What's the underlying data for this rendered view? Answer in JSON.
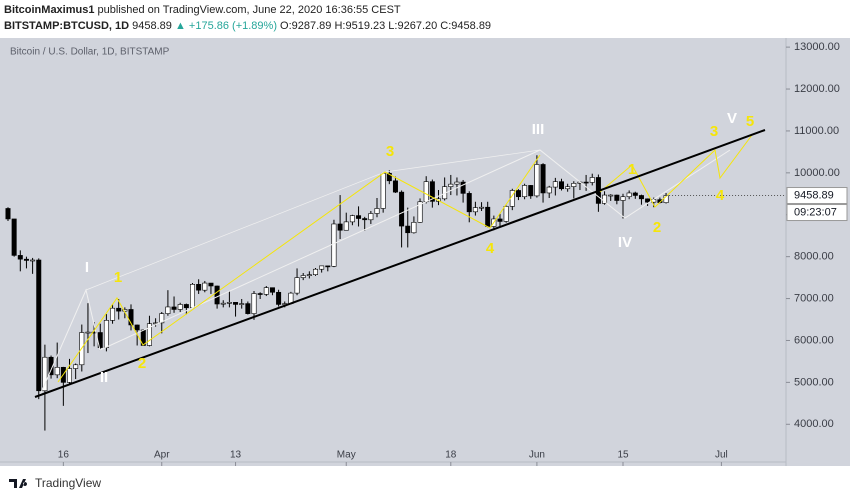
{
  "header": {
    "author": "BitcoinMaximus1",
    "published": "published on TradingView.com, June 22, 2020 16:36:55 CEST",
    "symbol": "BITSTAMP:BTCUSD, 1D",
    "price": "9458.89",
    "change": "▲ +175.86 (+1.89%)",
    "ohlc": "O:9287.89 H:9519.23 L:9267.20 C:9458.89",
    "brand": "TradingView"
  },
  "chart_data": {
    "type": "candlestick",
    "title": "Bitcoin / U.S. Dollar, 1D, BITSTAMP",
    "up_color": "#ffffff",
    "down_color": "#000000",
    "wick_color": "#000000",
    "grid": false,
    "ylim": [
      3100,
      13170
    ],
    "yticks": [
      {
        "value": 4000,
        "label": "4000.00"
      },
      {
        "value": 5000,
        "label": "5000.00"
      },
      {
        "value": 6000,
        "label": "6000.00"
      },
      {
        "value": 7000,
        "label": "7000.00"
      },
      {
        "value": 8000,
        "label": "8000.00"
      },
      {
        "value": 9000,
        "label": "9000.00"
      },
      {
        "value": 10000,
        "label": "10000.00"
      },
      {
        "value": 11000,
        "label": "11000.00"
      },
      {
        "value": 12000,
        "label": "12000.00"
      },
      {
        "value": 13000,
        "label": "13000.00"
      }
    ],
    "last_price": {
      "value": 9458.89,
      "label": "9458.89"
    },
    "countdown": "09:23:07",
    "categories": [
      null,
      null,
      null,
      null,
      null,
      null,
      null,
      null,
      null,
      "16",
      null,
      null,
      null,
      null,
      null,
      null,
      null,
      null,
      null,
      null,
      null,
      null,
      null,
      null,
      null,
      "Apr",
      null,
      null,
      null,
      null,
      null,
      null,
      null,
      null,
      null,
      null,
      null,
      "13",
      null,
      null,
      null,
      null,
      null,
      null,
      null,
      null,
      null,
      null,
      null,
      null,
      null,
      null,
      null,
      null,
      null,
      "May",
      null,
      null,
      null,
      null,
      null,
      null,
      null,
      null,
      null,
      null,
      null,
      null,
      null,
      null,
      null,
      null,
      "18",
      null,
      null,
      null,
      null,
      null,
      null,
      null,
      null,
      null,
      null,
      null,
      null,
      null,
      "Jun",
      null,
      null,
      null,
      null,
      null,
      null,
      null,
      null,
      null,
      null,
      null,
      null,
      null,
      "15",
      null,
      null,
      null,
      null,
      null,
      null,
      null,
      null,
      null,
      null,
      null,
      null,
      null,
      null,
      null,
      "Jul",
      null,
      null,
      null,
      null,
      null,
      null,
      null,
      null,
      null,
      null
    ],
    "ohlc": [
      [
        9150,
        9180,
        8850,
        8900
      ],
      [
        8900,
        8900,
        8000,
        8030
      ],
      [
        8030,
        8150,
        7650,
        7940
      ],
      [
        7940,
        8000,
        7720,
        7910
      ],
      [
        7910,
        7970,
        7590,
        7920
      ],
      [
        7920,
        7960,
        4600,
        4800
      ],
      [
        4800,
        5900,
        3850,
        5600
      ],
      [
        5600,
        5640,
        5090,
        5180
      ],
      [
        5180,
        5950,
        5100,
        5360
      ],
      [
        5360,
        5370,
        4440,
        5000
      ],
      [
        5000,
        5560,
        4970,
        5330
      ],
      [
        5330,
        5450,
        5080,
        5420
      ],
      [
        5420,
        6380,
        5260,
        6190
      ],
      [
        6190,
        6890,
        5700,
        6200
      ],
      [
        6200,
        6440,
        5860,
        6190
      ],
      [
        6190,
        6400,
        5770,
        5830
      ],
      [
        5830,
        6630,
        5740,
        6480
      ],
      [
        6480,
        6860,
        6400,
        6770
      ],
      [
        6770,
        6990,
        6500,
        6700
      ],
      [
        6700,
        6790,
        6530,
        6740
      ],
      [
        6740,
        6860,
        6240,
        6370
      ],
      [
        6370,
        6380,
        5880,
        6250
      ],
      [
        6250,
        6270,
        5880,
        5880
      ],
      [
        5880,
        6590,
        5860,
        6400
      ],
      [
        6400,
        6530,
        6330,
        6420
      ],
      [
        6420,
        6680,
        6170,
        6640
      ],
      [
        6640,
        7200,
        6590,
        6800
      ],
      [
        6800,
        7050,
        6660,
        6740
      ],
      [
        6740,
        6900,
        6680,
        6860
      ],
      [
        6860,
        6880,
        6620,
        6780
      ],
      [
        6780,
        7370,
        6780,
        7340
      ],
      [
        7340,
        7460,
        7110,
        7200
      ],
      [
        7200,
        7420,
        7150,
        7370
      ],
      [
        7370,
        7370,
        7110,
        7300
      ],
      [
        7300,
        7310,
        6760,
        6870
      ],
      [
        6870,
        6960,
        6790,
        6890
      ],
      [
        6890,
        7170,
        6790,
        6910
      ],
      [
        6910,
        6910,
        6570,
        6860
      ],
      [
        6860,
        6990,
        6760,
        6880
      ],
      [
        6880,
        6930,
        6620,
        6640
      ],
      [
        6640,
        7180,
        6490,
        7120
      ],
      [
        7120,
        7150,
        6990,
        7100
      ],
      [
        7100,
        7300,
        7060,
        7260
      ],
      [
        7260,
        7260,
        7080,
        7150
      ],
      [
        7150,
        7210,
        6810,
        6860
      ],
      [
        6860,
        6930,
        6790,
        6880
      ],
      [
        6880,
        7160,
        6860,
        7130
      ],
      [
        7130,
        7720,
        7080,
        7500
      ],
      [
        7500,
        7610,
        7440,
        7550
      ],
      [
        7550,
        7650,
        7480,
        7570
      ],
      [
        7570,
        7730,
        7540,
        7700
      ],
      [
        7700,
        7780,
        7620,
        7780
      ],
      [
        7780,
        7780,
        7650,
        7770
      ],
      [
        7770,
        8880,
        7750,
        8780
      ],
      [
        8780,
        9470,
        8420,
        8630
      ],
      [
        8630,
        9050,
        8630,
        8830
      ],
      [
        8830,
        9000,
        8750,
        8980
      ],
      [
        8980,
        9200,
        8720,
        8910
      ],
      [
        8910,
        8950,
        8620,
        8880
      ],
      [
        8880,
        9090,
        8780,
        9030
      ],
      [
        9030,
        9400,
        8940,
        9150
      ],
      [
        9150,
        9990,
        9050,
        9990
      ],
      [
        9990,
        10060,
        9730,
        9810
      ],
      [
        9810,
        9910,
        9520,
        9540
      ],
      [
        9540,
        9580,
        8220,
        8730
      ],
      [
        8730,
        9170,
        8220,
        8570
      ],
      [
        8570,
        8960,
        8550,
        8820
      ],
      [
        8820,
        9390,
        8810,
        9310
      ],
      [
        9310,
        9920,
        9270,
        9790
      ],
      [
        9790,
        9840,
        9170,
        9320
      ],
      [
        9320,
        9590,
        9230,
        9380
      ],
      [
        9380,
        9890,
        9340,
        9670
      ],
      [
        9670,
        9950,
        9470,
        9730
      ],
      [
        9730,
        9890,
        9460,
        9780
      ],
      [
        9780,
        9830,
        9290,
        9510
      ],
      [
        9510,
        9560,
        8820,
        9070
      ],
      [
        9070,
        9310,
        8980,
        9170
      ],
      [
        9170,
        9300,
        9090,
        9180
      ],
      [
        9180,
        9310,
        8700,
        8720
      ],
      [
        8720,
        8980,
        8630,
        8900
      ],
      [
        8900,
        9020,
        8700,
        8840
      ],
      [
        8840,
        9220,
        8810,
        9200
      ],
      [
        9200,
        9620,
        9110,
        9580
      ],
      [
        9580,
        9610,
        9350,
        9430
      ],
      [
        9430,
        9740,
        9370,
        9700
      ],
      [
        9700,
        9710,
        9380,
        9450
      ],
      [
        9450,
        10420,
        9410,
        10200
      ],
      [
        10200,
        10230,
        9290,
        9520
      ],
      [
        9520,
        9690,
        9400,
        9660
      ],
      [
        9660,
        9880,
        9460,
        9790
      ],
      [
        9790,
        9860,
        9580,
        9620
      ],
      [
        9620,
        9740,
        9550,
        9670
      ],
      [
        9670,
        9800,
        9390,
        9750
      ],
      [
        9750,
        9800,
        9590,
        9780
      ],
      [
        9780,
        9950,
        9570,
        9770
      ],
      [
        9770,
        9980,
        9700,
        9890
      ],
      [
        9890,
        9960,
        9070,
        9270
      ],
      [
        9270,
        9560,
        9240,
        9470
      ],
      [
        9470,
        9490,
        9330,
        9470
      ],
      [
        9470,
        9480,
        9250,
        9340
      ],
      [
        9340,
        9500,
        8910,
        9430
      ],
      [
        9430,
        9580,
        9370,
        9520
      ],
      [
        9520,
        9550,
        9380,
        9460
      ],
      [
        9460,
        9480,
        9240,
        9380
      ],
      [
        9380,
        9390,
        9210,
        9300
      ],
      [
        9300,
        9410,
        9180,
        9360
      ],
      [
        9360,
        9410,
        9270,
        9290
      ],
      [
        9287.89,
        9519.23,
        9267.2,
        9458.89
      ],
      null,
      null,
      null,
      null,
      null,
      null,
      null,
      null,
      null,
      null,
      null,
      null,
      null,
      null,
      null,
      null,
      null,
      null,
      null
    ],
    "waves": [
      {
        "text": "I",
        "color": "#ffffff"
      },
      {
        "text": "II",
        "color": "#ffffff"
      },
      {
        "text": "III",
        "color": "#ffffff"
      },
      {
        "text": "IV",
        "color": "#ffffff"
      },
      {
        "text": "V",
        "color": "#ffffff"
      },
      {
        "text": "1",
        "color": "#f5e50a"
      },
      {
        "text": "2",
        "color": "#f5e50a"
      },
      {
        "text": "3",
        "color": "#f5e50a"
      },
      {
        "text": "4",
        "color": "#f5e50a"
      },
      {
        "text": "1",
        "color": "#f5e50a"
      },
      {
        "text": "2",
        "color": "#f5e50a"
      },
      {
        "text": "3",
        "color": "#f5e50a"
      },
      {
        "text": "4",
        "color": "#f5e50a"
      },
      {
        "text": "5",
        "color": "#f5e50a"
      }
    ]
  }
}
